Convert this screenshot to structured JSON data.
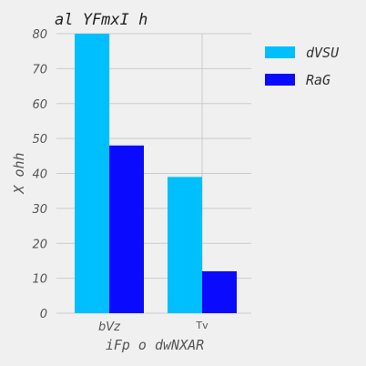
{
  "chart_data": {
    "type": "bar",
    "title": "al YFmxI h",
    "xlabel": "iFp o dwNXAR",
    "ylabel": "X ohh",
    "categories": [
      "bVz",
      "Tv"
    ],
    "series": [
      {
        "name": "dVSU",
        "values": [
          80,
          39
        ],
        "color": "#00bfff"
      },
      {
        "name": "RaG",
        "values": [
          48,
          12
        ],
        "color": "#0a0aff"
      }
    ],
    "ylim": [
      0,
      80
    ],
    "yticks": [
      0,
      10,
      20,
      30,
      40,
      50,
      60,
      70,
      80
    ],
    "grid": true,
    "legend": "top-right"
  }
}
